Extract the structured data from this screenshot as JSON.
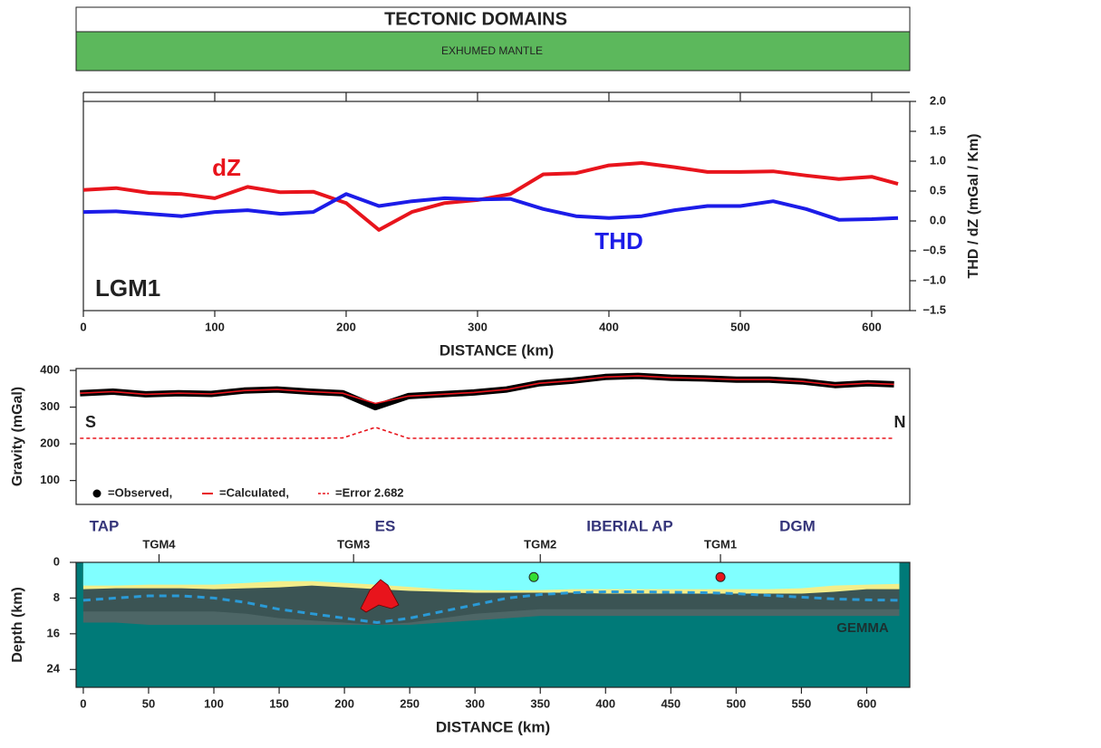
{
  "header": {
    "title": "TECTONIC DOMAINS",
    "domain": "EXHUMED MANTLE"
  },
  "chart_data": [
    {
      "type": "line",
      "label": "LGM1",
      "x_label": "DISTANCE (km)",
      "y_label": "THD / dZ (mGal / Km)",
      "xlim": [
        0,
        629
      ],
      "xticks": [
        0,
        100,
        200,
        300,
        400,
        500,
        600
      ],
      "ylim": [
        -1.5,
        2
      ],
      "yticks": [
        {
          "value": -1.5,
          "label": "−1.5"
        },
        {
          "value": -1,
          "label": "−1.0"
        },
        {
          "value": -0.5,
          "label": "−0.5"
        },
        {
          "value": 0,
          "label": "0.0"
        },
        0.5,
        {
          "value": 1,
          "label": "1.0"
        },
        1.5,
        {
          "value": 2,
          "label": "2.0"
        }
      ],
      "x": [
        0,
        25,
        50,
        75,
        100,
        125,
        150,
        175,
        200,
        225,
        250,
        275,
        300,
        325,
        350,
        375,
        400,
        425,
        450,
        475,
        500,
        525,
        550,
        575,
        600,
        620
      ],
      "series": [
        {
          "name": "dZ",
          "color": "#e8141c",
          "values": [
            0.52,
            0.55,
            0.47,
            0.45,
            0.38,
            0.57,
            0.48,
            0.49,
            0.3,
            -0.15,
            0.15,
            0.3,
            0.35,
            0.45,
            0.78,
            0.8,
            0.93,
            0.97,
            0.9,
            0.82,
            0.82,
            0.83,
            0.76,
            0.7,
            0.74,
            0.62
          ]
        },
        {
          "name": "THD",
          "color": "#1c1ce8",
          "values": [
            0.15,
            0.16,
            0.12,
            0.08,
            0.15,
            0.18,
            0.12,
            0.15,
            0.45,
            0.25,
            0.33,
            0.38,
            0.36,
            0.37,
            0.2,
            0.08,
            0.05,
            0.08,
            0.18,
            0.25,
            0.25,
            0.33,
            0.2,
            0.02,
            0.03,
            0.05
          ]
        }
      ]
    },
    {
      "type": "line",
      "y_label": "Gravity (mGal)",
      "left_label": "S",
      "right_label": "N",
      "xlim": [
        -3,
        632
      ],
      "ylim": [
        35,
        405
      ],
      "yticks": [
        100,
        200,
        300,
        400
      ],
      "x": [
        0,
        25,
        50,
        75,
        100,
        125,
        150,
        175,
        200,
        225,
        250,
        275,
        300,
        325,
        350,
        375,
        400,
        425,
        450,
        475,
        500,
        525,
        550,
        575,
        600,
        620
      ],
      "series": [
        {
          "name": "=Observed,",
          "color": "#000000",
          "values": [
            338,
            342,
            335,
            338,
            336,
            345,
            348,
            342,
            338,
            300,
            330,
            335,
            340,
            348,
            365,
            372,
            382,
            385,
            380,
            378,
            375,
            375,
            370,
            360,
            365,
            362
          ]
        },
        {
          "name": "=Calculated,",
          "color": "#e8141c",
          "values": [
            338,
            342,
            335,
            338,
            336,
            345,
            348,
            342,
            338,
            310,
            330,
            335,
            340,
            348,
            365,
            372,
            382,
            385,
            380,
            378,
            375,
            375,
            370,
            360,
            365,
            362
          ]
        },
        {
          "name": "=Error 2.682",
          "color": "#e8141c",
          "dashed": true,
          "values": [
            215,
            215,
            215,
            215,
            215,
            215,
            215,
            215,
            216,
            245,
            215,
            215,
            215,
            215,
            215,
            215,
            215,
            215,
            215,
            215,
            215,
            215,
            215,
            215,
            215,
            215
          ]
        }
      ]
    },
    {
      "type": "section",
      "x_label": "DISTANCE (km)",
      "y_label": "Depth (km)",
      "xlim": [
        -5.5,
        633
      ],
      "xticks": [
        0,
        50,
        100,
        150,
        200,
        250,
        300,
        350,
        400,
        450,
        500,
        550,
        600
      ],
      "ylim": [
        28,
        0
      ],
      "yticks": [
        0,
        8,
        16,
        24
      ],
      "background": "#007a78",
      "domains": [
        "TAP",
        "ES",
        "IBERIAL AP",
        "DGM"
      ],
      "basement_label": "GEMMA",
      "wells": [
        {
          "label": "TGM4",
          "x": 58
        },
        {
          "label": "TGM3",
          "x": 207
        },
        {
          "label": "TGM2",
          "x": 350
        },
        {
          "label": "TGM1",
          "x": 488
        }
      ],
      "markers": [
        {
          "x": 345,
          "depth": 3.3,
          "color": "#33dd33"
        },
        {
          "x": 488,
          "depth": 3.3,
          "color": "#e8141c"
        }
      ],
      "x": [
        0,
        25,
        50,
        75,
        100,
        125,
        150,
        175,
        200,
        225,
        250,
        275,
        300,
        325,
        350,
        375,
        400,
        425,
        450,
        475,
        500,
        525,
        550,
        575,
        600,
        625
      ],
      "layers": [
        {
          "color": "#80ffff",
          "values": [
            5.2,
            5.2,
            5.0,
            5.0,
            5.0,
            4.6,
            4.2,
            4.2,
            4.6,
            5.0,
            5.5,
            6.0,
            6.2,
            6.3,
            6.2,
            6.0,
            6.0,
            6.0,
            6.0,
            6.0,
            6.0,
            6.0,
            5.8,
            5.2,
            5.0,
            4.8
          ]
        },
        {
          "color": "#f3ee8a",
          "values": [
            6.0,
            5.8,
            5.8,
            5.8,
            6.0,
            5.8,
            5.6,
            5.2,
            5.6,
            6.0,
            6.4,
            6.6,
            6.8,
            6.8,
            6.8,
            6.8,
            7.0,
            7.0,
            7.0,
            7.0,
            7.0,
            7.0,
            7.0,
            6.6,
            6.0,
            6.0
          ]
        },
        {
          "color": "#3b5454",
          "values": [
            11,
            11,
            11,
            11,
            11,
            11.5,
            12.5,
            13,
            13.5,
            14,
            13.5,
            12.5,
            11.5,
            11,
            10.5,
            10.5,
            10.5,
            10.5,
            10.5,
            10.5,
            10.5,
            10.5,
            10.5,
            10.5,
            10.5,
            10.5
          ]
        },
        {
          "color": "#4d6666",
          "values": [
            13.5,
            13.5,
            14,
            14,
            14,
            14,
            14,
            14,
            14,
            14,
            14,
            13.5,
            13,
            12.5,
            12,
            12,
            12,
            12,
            12,
            12,
            12,
            12,
            12,
            12,
            12,
            12
          ]
        }
      ],
      "moho": {
        "color": "#2a9ad6",
        "values": [
          8.5,
          8,
          7.5,
          7.5,
          8,
          9,
          10.5,
          11.5,
          12.5,
          13.5,
          12.5,
          11,
          9.5,
          8,
          7.2,
          6.8,
          6.6,
          6.6,
          6.7,
          6.8,
          7,
          7.4,
          7.8,
          8.2,
          8.4,
          8.5
        ]
      }
    }
  ]
}
